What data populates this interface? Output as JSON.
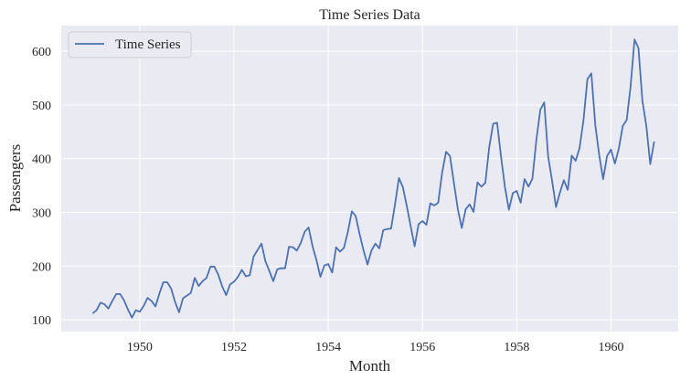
{
  "chart_data": {
    "type": "line",
    "title": "Time Series Data",
    "xlabel": "Month",
    "ylabel": "Passengers",
    "xlim": [
      "1948-05",
      "1961-06"
    ],
    "ylim": [
      78.1,
      647.9
    ],
    "xticks": [
      "1950",
      "1952",
      "1954",
      "1956",
      "1958",
      "1960"
    ],
    "yticks": [
      100,
      200,
      300,
      400,
      500,
      600
    ],
    "grid": true,
    "legend_position": "top-left",
    "background_color": "#eaeaf2",
    "series": [
      {
        "name": "Time Series",
        "color": "#4c72b0",
        "start": "1949-01",
        "frequency": "monthly",
        "values": [
          112,
          118,
          132,
          129,
          121,
          135,
          148,
          148,
          136,
          119,
          104,
          118,
          115,
          126,
          141,
          135,
          125,
          149,
          170,
          170,
          158,
          133,
          114,
          140,
          145,
          150,
          178,
          163,
          172,
          178,
          199,
          199,
          184,
          162,
          146,
          166,
          171,
          180,
          193,
          181,
          183,
          218,
          230,
          242,
          209,
          191,
          172,
          194,
          196,
          196,
          236,
          235,
          229,
          243,
          264,
          272,
          237,
          211,
          180,
          201,
          204,
          188,
          235,
          227,
          234,
          264,
          302,
          293,
          259,
          229,
          203,
          229,
          242,
          233,
          267,
          269,
          270,
          315,
          364,
          347,
          312,
          274,
          237,
          278,
          284,
          277,
          317,
          313,
          318,
          374,
          413,
          405,
          355,
          306,
          271,
          306,
          315,
          301,
          356,
          348,
          355,
          422,
          465,
          467,
          404,
          347,
          305,
          336,
          340,
          318,
          362,
          348,
          363,
          435,
          491,
          505,
          404,
          359,
          310,
          337,
          360,
          342,
          406,
          396,
          420,
          472,
          548,
          559,
          463,
          407,
          362,
          405,
          417,
          391,
          419,
          461,
          472,
          535,
          622,
          606,
          508,
          461,
          390,
          432
        ]
      }
    ]
  }
}
